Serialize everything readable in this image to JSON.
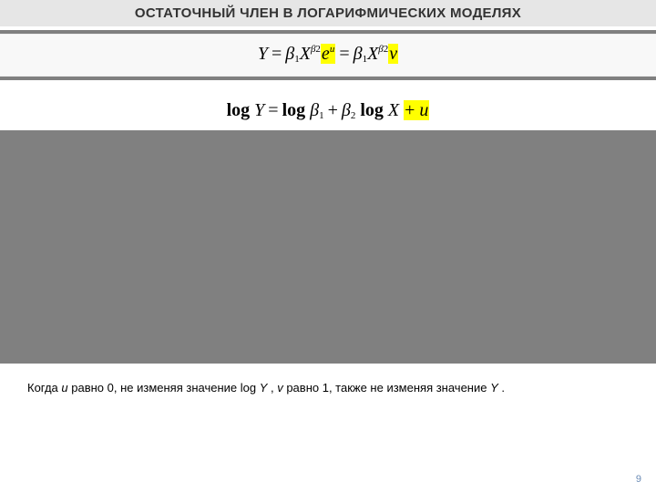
{
  "title": "ОСТАТОЧНЫЙ ЧЛЕН В ЛОГАРИФМИЧЕСКИХ МОДЕЛЯХ",
  "eq1": {
    "Y": "Y",
    "eq": "=",
    "beta": "β",
    "s1": "1",
    "X": "X",
    "s2": "2",
    "e": "e",
    "u": "u",
    "v": "v"
  },
  "eq2": {
    "log": "log",
    "Y": "Y",
    "eq": "=",
    "beta": "β",
    "s1": "1",
    "plus": "+",
    "s2": "2",
    "X": "X",
    "u": "u"
  },
  "caption": {
    "p1": "Когда ",
    "u": "u",
    "p2": " равно 0, не изменяя значение log   ",
    "Y1": "Y",
    "p3": " , ",
    "v": "v",
    "p4": " равно 1, также не изменяя значение  ",
    "Y2": "Y",
    "p5": " ."
  },
  "page": "9",
  "colors": {
    "band_bg": "#e6e6e6",
    "rule": "#808080",
    "highlight": "#ffff00",
    "gray_block": "#808080",
    "page_num": "#6a8bb5"
  }
}
